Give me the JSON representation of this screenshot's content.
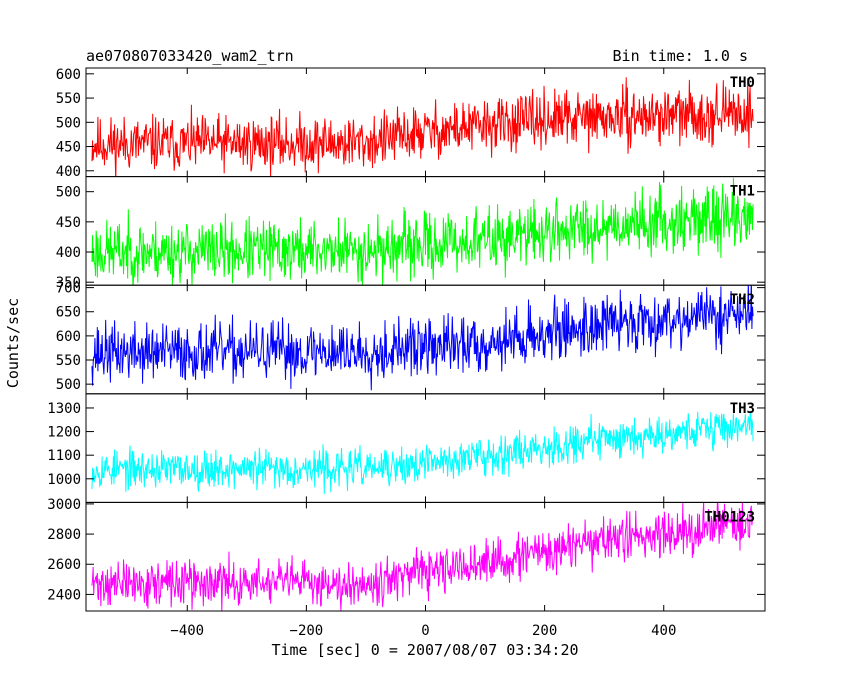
{
  "chart_data": {
    "type": "line",
    "title_left": "ae070807033420_wam2_trn",
    "title_right": "Bin time: 1.0 s",
    "xlabel": "Time [sec] 0 = 2007/08/07 03:34:20",
    "ylabel": "Counts/sec",
    "xlim": [
      -570,
      570
    ],
    "x_ticks": [
      -400,
      -200,
      0,
      200,
      400
    ],
    "x_range": [
      -560,
      550
    ],
    "grid": false,
    "panels": [
      {
        "name": "TH0",
        "color": "#ff0000",
        "ylim": [
          388,
          612
        ],
        "y_ticks": [
          400,
          450,
          500,
          550,
          600
        ],
        "trend": [
          [
            -560,
            455
          ],
          [
            -100,
            458
          ],
          [
            0,
            480
          ],
          [
            200,
            505
          ],
          [
            550,
            520
          ]
        ],
        "noise_amp": 42,
        "seed": 11
      },
      {
        "name": "TH1",
        "color": "#00ff00",
        "ylim": [
          345,
          525
        ],
        "y_ticks": [
          350,
          400,
          450,
          500
        ],
        "trend": [
          [
            -560,
            400
          ],
          [
            -100,
            403
          ],
          [
            100,
            420
          ],
          [
            300,
            445
          ],
          [
            550,
            460
          ]
        ],
        "noise_amp": 38,
        "seed": 23
      },
      {
        "name": "TH2",
        "color": "#0000ff",
        "ylim": [
          480,
          705
        ],
        "y_ticks": [
          500,
          550,
          600,
          650,
          700
        ],
        "trend": [
          [
            -560,
            565
          ],
          [
            -100,
            568
          ],
          [
            100,
            585
          ],
          [
            300,
            625
          ],
          [
            550,
            650
          ]
        ],
        "noise_amp": 45,
        "seed": 37
      },
      {
        "name": "TH3",
        "color": "#00ffff",
        "ylim": [
          900,
          1360
        ],
        "y_ticks": [
          1000,
          1100,
          1200,
          1300
        ],
        "trend": [
          [
            -560,
            1040
          ],
          [
            -50,
            1045
          ],
          [
            100,
            1100
          ],
          [
            300,
            1170
          ],
          [
            550,
            1230
          ]
        ],
        "noise_amp": 60,
        "seed": 53
      },
      {
        "name": "TH0123",
        "color": "#ff00ff",
        "ylim": [
          2290,
          3010
        ],
        "y_ticks": [
          2400,
          2600,
          2800,
          3000
        ],
        "trend": [
          [
            -560,
            2470
          ],
          [
            -100,
            2480
          ],
          [
            100,
            2600
          ],
          [
            300,
            2760
          ],
          [
            550,
            2880
          ]
        ],
        "noise_amp": 110,
        "seed": 71
      }
    ]
  }
}
